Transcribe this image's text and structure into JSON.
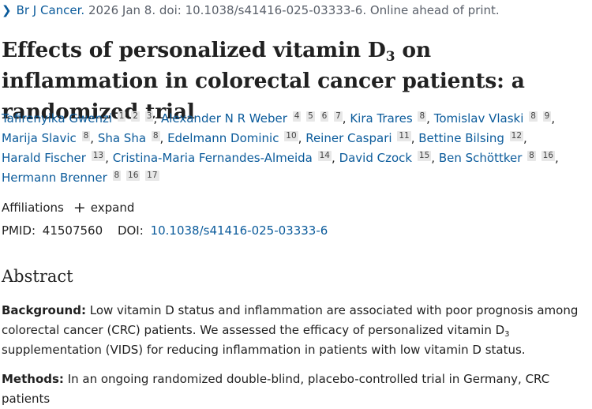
{
  "citation": {
    "chevron_icon": "chevron-right-icon",
    "journal": "Br J Cancer.",
    "details": " 2026 Jan 8. doi: 10.1038/s41416-025-03333-6. Online ahead of print."
  },
  "article": {
    "title_part1": "Effects of personalized vitamin D",
    "title_sub": "3",
    "title_part2": " on inflammation in colorectal cancer patients: a randomized trial"
  },
  "authors": [
    {
      "name": "Tafirenyika Gwenzi",
      "affils": [
        "1",
        "2",
        "3"
      ]
    },
    {
      "name": "Alexander N R Weber",
      "affils": [
        "4",
        "5",
        "6",
        "7"
      ]
    },
    {
      "name": "Kira Trares",
      "affils": [
        "8"
      ]
    },
    {
      "name": "Tomislav Vlaski",
      "affils": [
        "8",
        "9"
      ]
    },
    {
      "name": "Marija Slavic",
      "affils": [
        "8"
      ]
    },
    {
      "name": "Sha Sha",
      "affils": [
        "8"
      ]
    },
    {
      "name": "Edelmann Dominic",
      "affils": [
        "10"
      ]
    },
    {
      "name": "Reiner Caspari",
      "affils": [
        "11"
      ]
    },
    {
      "name": "Bettine Bilsing",
      "affils": [
        "12"
      ]
    },
    {
      "name": "Harald Fischer",
      "affils": [
        "13"
      ]
    },
    {
      "name": "Cristina-Maria Fernandes-Almeida",
      "affils": [
        "14"
      ]
    },
    {
      "name": "David Czock",
      "affils": [
        "15"
      ]
    },
    {
      "name": "Ben Schöttker",
      "affils": [
        "8",
        "16"
      ]
    },
    {
      "name": "Hermann Brenner",
      "affils": [
        "8",
        "16",
        "17"
      ]
    }
  ],
  "affiliations": {
    "label": "Affiliations",
    "expand_icon": "plus-icon",
    "expand_label": "expand"
  },
  "identifiers": {
    "pmid_label": "PMID:",
    "pmid": "41507560",
    "doi_label": "DOI:",
    "doi": "10.1038/s41416-025-03333-6"
  },
  "abstract": {
    "heading": "Abstract",
    "background_label": "Background:",
    "background_text_1": " Low vitamin D status and inflammation are associated with poor prognosis among colorectal cancer (CRC) patients. We assessed the efficacy of personalized vitamin D",
    "background_sub": "3",
    "background_text_2": " supplementation (VIDS) for reducing inflammation in patients with low vitamin D status.",
    "methods_label": "Methods:",
    "methods_text": " In an ongoing randomized double-blind, placebo-controlled trial in Germany, CRC patients"
  }
}
